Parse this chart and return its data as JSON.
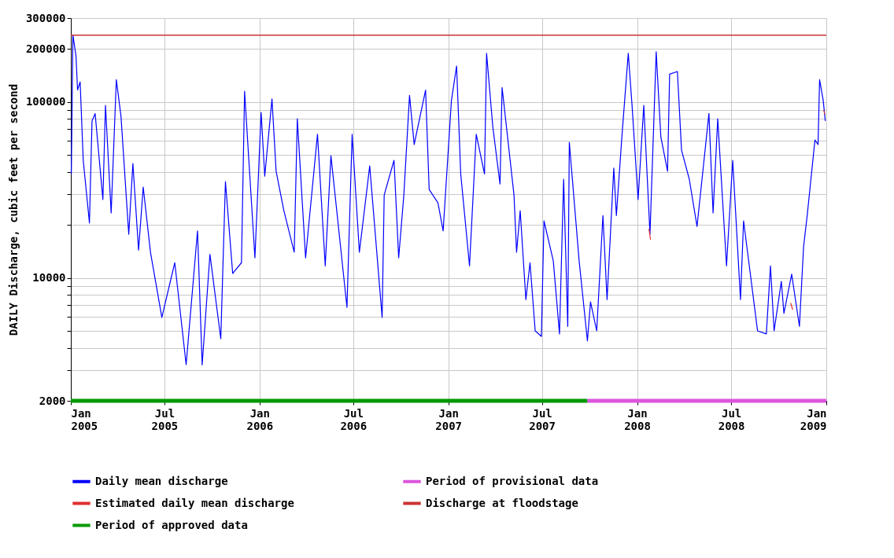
{
  "chart_data": {
    "type": "line",
    "ylabel": "DAILY Discharge, cubic feet per second",
    "log": true,
    "grid": true,
    "legend": "bottom",
    "xlim": [
      "2005-01-01",
      "2009-01-01"
    ],
    "xticks": [
      {
        "value": "2005-01-01",
        "label": "Jan 2005"
      },
      {
        "value": "2005-07-01",
        "label": "Jul 2005"
      },
      {
        "value": "2006-01-01",
        "label": "Jan 2006"
      },
      {
        "value": "2006-07-01",
        "label": "Jul 2006"
      },
      {
        "value": "2007-01-01",
        "label": "Jan 2007"
      },
      {
        "value": "2007-07-01",
        "label": "Jul 2007"
      },
      {
        "value": "2008-01-01",
        "label": "Jan 2008"
      },
      {
        "value": "2008-07-01",
        "label": "Jul 2008"
      },
      {
        "value": "2009-01-01",
        "label": "Jan 2009"
      }
    ],
    "ylim": [
      2000,
      300000
    ],
    "yticks": [
      2000,
      {
        "value": 3000,
        "label": null
      },
      {
        "value": 4000,
        "label": null
      },
      {
        "value": 5000,
        "label": null
      },
      {
        "value": 6000,
        "label": null
      },
      {
        "value": 7000,
        "label": null
      },
      {
        "value": 8000,
        "label": null
      },
      {
        "value": 9000,
        "label": null
      },
      10000,
      {
        "value": 20000,
        "label": null
      },
      {
        "value": 30000,
        "label": null
      },
      {
        "value": 40000,
        "label": null
      },
      {
        "value": 50000,
        "label": null
      },
      {
        "value": 60000,
        "label": null
      },
      {
        "value": 70000,
        "label": null
      },
      {
        "value": 80000,
        "label": null
      },
      {
        "value": 90000,
        "label": null
      },
      100000,
      200000,
      300000
    ],
    "series": [
      {
        "name": "Daily mean discharge",
        "color": "#0000ff",
        "x": [
          "2005-01-02",
          "2005-01-05",
          "2005-01-11",
          "2005-01-14",
          "2005-01-19",
          "2005-01-25",
          "2005-02-06",
          "2005-02-11",
          "2005-02-17",
          "2005-03-04",
          "2005-03-09",
          "2005-03-20",
          "2005-03-30",
          "2005-04-08",
          "2005-04-23",
          "2005-05-01",
          "2005-05-12",
          "2005-05-21",
          "2005-06-04",
          "2005-06-26",
          "2005-07-21",
          "2005-08-12",
          "2005-09-03",
          "2005-09-12",
          "2005-09-27",
          "2005-10-18",
          "2005-10-27",
          "2005-11-10",
          "2005-11-27",
          "2005-12-03",
          "2005-12-23",
          "2006-01-04",
          "2006-01-11",
          "2006-01-25",
          "2006-02-02",
          "2006-02-17",
          "2006-03-09",
          "2006-03-15",
          "2006-03-31",
          "2006-04-23",
          "2006-05-08",
          "2006-05-19",
          "2006-06-19",
          "2006-06-29",
          "2006-07-13",
          "2006-08-02",
          "2006-08-26",
          "2006-08-30",
          "2006-09-18",
          "2006-09-27",
          "2006-10-07",
          "2006-10-18",
          "2006-10-27",
          "2006-11-18",
          "2006-11-25",
          "2006-12-12",
          "2006-12-22",
          "2007-01-07",
          "2007-01-17",
          "2007-01-25",
          "2007-02-11",
          "2007-02-24",
          "2007-03-12",
          "2007-03-16",
          "2007-03-28",
          "2007-04-11",
          "2007-04-15",
          "2007-05-08",
          "2007-05-13",
          "2007-05-20",
          "2007-05-31",
          "2007-06-08",
          "2007-06-18",
          "2007-06-30",
          "2007-07-05",
          "2007-07-23",
          "2007-08-04",
          "2007-08-12",
          "2007-08-20",
          "2007-08-23",
          "2007-09-11",
          "2007-09-27",
          "2007-10-03",
          "2007-10-15",
          "2007-10-27",
          "2007-11-04",
          "2007-11-17",
          "2007-11-22",
          "2007-12-03",
          "2007-12-15",
          "2007-12-22",
          "2008-01-03",
          "2008-01-14",
          "2008-01-26",
          "2008-02-07",
          "2008-02-16",
          "2008-02-29",
          "2008-03-04",
          "2008-03-19",
          "2008-03-27",
          "2008-04-11",
          "2008-04-26",
          "2008-05-19",
          "2008-05-27",
          "2008-06-05",
          "2008-06-22",
          "2008-07-04",
          "2008-07-19",
          "2008-07-25",
          "2008-08-21",
          "2008-09-07",
          "2008-09-15",
          "2008-09-22",
          "2008-10-06",
          "2008-10-11",
          "2008-10-26",
          "2008-11-10",
          "2008-11-18",
          "2008-11-25",
          "2008-12-10",
          "2008-12-16",
          "2008-12-19",
          "2008-12-26",
          "2008-12-30"
        ],
        "values": [
          39000,
          240000,
          183000,
          117000,
          130000,
          46600,
          20500,
          78000,
          86000,
          27900,
          95700,
          23400,
          134000,
          83000,
          17700,
          44700,
          14400,
          32800,
          14000,
          5960,
          12200,
          3210,
          18500,
          3200,
          13600,
          4510,
          35300,
          10600,
          12200,
          115000,
          13000,
          87300,
          37900,
          104000,
          40400,
          24100,
          14000,
          80300,
          13000,
          65500,
          11700,
          49500,
          6800,
          65500,
          14000,
          43300,
          5960,
          29600,
          46600,
          13000,
          29600,
          109000,
          57300,
          117000,
          31800,
          26700,
          18500,
          102000,
          160000,
          39000,
          11700,
          65500,
          39000,
          189000,
          72500,
          34200,
          121000,
          29600,
          14000,
          24100,
          7530,
          12200,
          5000,
          4650,
          21100,
          12500,
          4800,
          36400,
          5300,
          59000,
          12500,
          4380,
          7300,
          5000,
          22600,
          7530,
          42100,
          22600,
          65500,
          189000,
          98700,
          27900,
          95700,
          17700,
          193000,
          63400,
          40400,
          144000,
          149000,
          53200,
          36400,
          19600,
          86000,
          23400,
          80300,
          11700,
          46600,
          7530,
          21100,
          5000,
          4800,
          11700,
          5000,
          9550,
          6290,
          10500,
          5300,
          15000,
          22600,
          60800,
          57300,
          134000,
          102000,
          78000
        ]
      },
      {
        "name": "Estimated daily mean discharge",
        "color": "#e03030",
        "x": [
          "2008-01-24",
          "2008-01-27",
          "2008-01-28",
          "2008-10-24",
          "2008-10-28",
          "2008-10-29",
          "2008-12-27",
          "2008-12-29"
        ],
        "values": [
          19000,
          16500,
          null,
          7200,
          6600,
          null,
          90000,
          85000
        ]
      },
      {
        "name": "Period of approved data",
        "color": "#009900",
        "x": [
          "2005-01-01",
          "2007-09-27"
        ],
        "values": [
          2000,
          2000
        ]
      },
      {
        "name": "Period of provisional data",
        "color": "#dd55dd",
        "x": [
          "2007-09-27",
          "2009-01-01"
        ],
        "values": [
          2000,
          2000
        ]
      }
    ],
    "ref_lines": [
      {
        "axis": "y",
        "value": 240000,
        "label": "Discharge at floodstage",
        "color": "#cc3333"
      }
    ]
  }
}
